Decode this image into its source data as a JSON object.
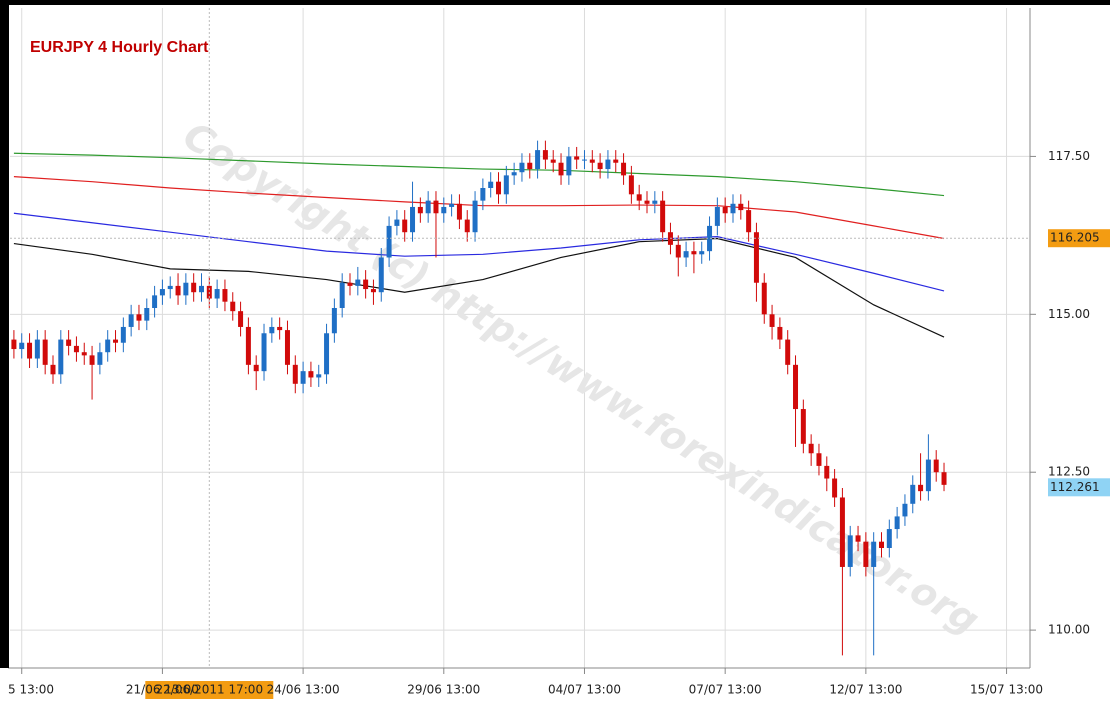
{
  "chart_data": {
    "type": "candlestick",
    "title": "EURJPY 4 Hourly Chart",
    "watermark": "Copyright (c) http://www.forexindicator.org",
    "up_color": "#1f6fc5",
    "down_color": "#d10a0a",
    "grid": true,
    "xlim": [
      -0.5,
      130
    ],
    "xticks": [
      {
        "value": 1,
        "label": "5 13:00"
      },
      {
        "value": 19,
        "label": "21/06 13:00"
      },
      {
        "value": 37,
        "label": "24/06 13:00"
      },
      {
        "value": 55,
        "label": "29/06 13:00"
      },
      {
        "value": 73,
        "label": "04/07 13:00"
      },
      {
        "value": 91,
        "label": "07/07 13:00"
      },
      {
        "value": 109,
        "label": "12/07 13:00"
      },
      {
        "value": 127,
        "label": "15/07 13:00"
      }
    ],
    "ylim": [
      109.4,
      119.85
    ],
    "yticks": [
      {
        "value": 110,
        "label": "110.00"
      },
      {
        "value": 112.5,
        "label": "112.50"
      },
      {
        "value": 115,
        "label": "115.00"
      },
      {
        "value": 117.5,
        "label": "117.50"
      }
    ],
    "crosshair": {
      "x": 25,
      "x_label": "22/06/2011 17:00",
      "y": 116.205
    },
    "last_price": 112.261,
    "open": [
      114.6,
      114.45,
      114.55,
      114.3,
      114.6,
      114.2,
      114.05,
      114.6,
      114.5,
      114.4,
      114.35,
      114.2,
      114.4,
      114.6,
      114.55,
      114.8,
      115.0,
      114.9,
      115.1,
      115.3,
      115.4,
      115.45,
      115.3,
      115.5,
      115.35,
      115.45,
      115.25,
      115.4,
      115.2,
      115.05,
      114.8,
      114.2,
      114.1,
      114.7,
      114.8,
      114.75,
      114.2,
      113.9,
      114.1,
      114.0,
      114.05,
      114.7,
      115.1,
      115.5,
      115.45,
      115.55,
      115.4,
      115.35,
      115.9,
      116.4,
      116.5,
      116.3,
      116.7,
      116.6,
      116.8,
      116.6,
      116.7,
      116.75,
      116.5,
      116.3,
      116.8,
      117.0,
      117.1,
      116.9,
      117.2,
      117.25,
      117.4,
      117.3,
      117.6,
      117.45,
      117.4,
      117.2,
      117.5,
      117.45,
      117.45,
      117.4,
      117.3,
      117.45,
      117.4,
      117.2,
      116.9,
      116.8,
      116.75,
      116.8,
      116.3,
      116.1,
      115.9,
      116.0,
      115.95,
      116.0,
      116.4,
      116.7,
      116.6,
      116.75,
      116.65,
      116.3,
      115.5,
      115.0,
      114.8,
      114.6,
      114.2,
      113.5,
      112.95,
      112.8,
      112.6,
      112.4,
      112.1,
      111.0,
      111.5,
      111.4,
      111.0,
      111.4,
      111.3,
      111.6,
      111.8,
      112.0,
      112.3,
      112.2,
      112.7,
      112.5
    ],
    "high": [
      114.75,
      114.7,
      114.7,
      114.75,
      114.75,
      114.35,
      114.75,
      114.75,
      114.65,
      114.55,
      114.5,
      114.55,
      114.75,
      114.75,
      114.95,
      115.15,
      115.15,
      115.25,
      115.45,
      115.55,
      115.6,
      115.65,
      115.65,
      115.65,
      115.65,
      115.6,
      115.55,
      115.55,
      115.35,
      115.2,
      114.95,
      114.35,
      114.85,
      114.95,
      114.95,
      114.9,
      114.35,
      114.25,
      114.25,
      114.2,
      114.85,
      115.25,
      115.65,
      115.65,
      115.75,
      115.7,
      115.55,
      116.05,
      116.55,
      116.65,
      116.65,
      117.1,
      116.85,
      116.95,
      116.95,
      116.85,
      116.9,
      116.9,
      116.65,
      116.95,
      117.15,
      117.25,
      117.25,
      117.35,
      117.4,
      117.55,
      117.55,
      117.75,
      117.75,
      117.6,
      117.55,
      117.65,
      117.65,
      117.6,
      117.6,
      117.55,
      117.6,
      117.6,
      117.55,
      117.35,
      117.05,
      116.95,
      116.95,
      116.95,
      116.45,
      116.25,
      116.15,
      116.15,
      116.15,
      116.55,
      116.85,
      116.85,
      116.9,
      116.9,
      116.8,
      116.45,
      115.65,
      115.15,
      114.95,
      114.75,
      114.35,
      113.65,
      113.1,
      112.95,
      112.75,
      112.55,
      112.25,
      111.65,
      111.65,
      111.55,
      111.55,
      111.55,
      111.75,
      111.95,
      112.15,
      112.45,
      112.8,
      113.1,
      112.85,
      112.65
    ],
    "low": [
      114.3,
      114.3,
      114.15,
      114.15,
      114.05,
      113.9,
      113.9,
      114.35,
      114.25,
      114.2,
      113.65,
      114.05,
      114.25,
      114.4,
      114.4,
      114.65,
      114.75,
      114.75,
      114.95,
      115.15,
      115.25,
      115.15,
      115.15,
      115.2,
      115.2,
      115.1,
      115.1,
      115.05,
      114.9,
      114.65,
      114.05,
      113.8,
      113.95,
      114.55,
      114.6,
      114.05,
      113.75,
      113.75,
      113.85,
      113.85,
      113.9,
      114.55,
      114.95,
      115.3,
      115.3,
      115.25,
      115.15,
      115.2,
      115.75,
      116.25,
      116.15,
      116.15,
      116.45,
      116.45,
      115.9,
      116.45,
      116.55,
      116.35,
      116.15,
      116.15,
      116.65,
      116.85,
      116.75,
      116.75,
      117.05,
      117.1,
      117.15,
      117.15,
      117.3,
      117.25,
      117.05,
      117.05,
      117.3,
      117.3,
      117.25,
      117.15,
      117.15,
      117.25,
      117.05,
      116.75,
      116.65,
      116.6,
      116.6,
      116.15,
      115.95,
      115.6,
      115.75,
      115.65,
      115.8,
      115.85,
      116.25,
      116.45,
      116.45,
      116.5,
      116.15,
      115.2,
      114.85,
      114.6,
      114.45,
      114.05,
      112.9,
      112.8,
      112.6,
      112.45,
      112.2,
      111.95,
      109.6,
      110.85,
      111.25,
      110.85,
      109.6,
      111.15,
      111.15,
      111.45,
      111.65,
      111.85,
      112.05,
      112.05,
      112.35,
      112.2
    ],
    "close": [
      114.45,
      114.55,
      114.3,
      114.6,
      114.2,
      114.05,
      114.6,
      114.5,
      114.4,
      114.35,
      114.2,
      114.4,
      114.6,
      114.55,
      114.8,
      115.0,
      114.9,
      115.1,
      115.3,
      115.4,
      115.45,
      115.3,
      115.5,
      115.35,
      115.45,
      115.25,
      115.4,
      115.2,
      115.05,
      114.8,
      114.2,
      114.1,
      114.7,
      114.8,
      114.75,
      114.2,
      113.9,
      114.1,
      114.0,
      114.05,
      114.7,
      115.1,
      115.5,
      115.45,
      115.55,
      115.4,
      115.35,
      115.9,
      116.4,
      116.5,
      116.3,
      116.7,
      116.6,
      116.8,
      116.6,
      116.7,
      116.75,
      116.5,
      116.3,
      116.8,
      117.0,
      117.1,
      116.9,
      117.2,
      117.25,
      117.4,
      117.3,
      117.6,
      117.45,
      117.4,
      117.2,
      117.5,
      117.45,
      117.45,
      117.4,
      117.3,
      117.45,
      117.4,
      117.2,
      116.9,
      116.8,
      116.75,
      116.8,
      116.3,
      116.1,
      115.9,
      116.0,
      115.95,
      116.0,
      116.4,
      116.7,
      116.6,
      116.75,
      116.65,
      116.3,
      115.5,
      115.0,
      114.8,
      114.6,
      114.2,
      113.5,
      112.95,
      112.8,
      112.6,
      112.4,
      112.1,
      111.0,
      111.5,
      111.4,
      111.0,
      111.4,
      111.3,
      111.6,
      111.8,
      112.0,
      112.3,
      112.2,
      112.7,
      112.5,
      112.3
    ],
    "series": [
      {
        "color": "#2e9a2e",
        "x": [
          0,
          10,
          20,
          30,
          40,
          50,
          60,
          70,
          80,
          90,
          100,
          110,
          119
        ],
        "values": [
          117.55,
          117.52,
          117.48,
          117.43,
          117.38,
          117.34,
          117.3,
          117.28,
          117.23,
          117.18,
          117.1,
          116.99,
          116.88
        ]
      },
      {
        "color": "#e02020",
        "x": [
          0,
          10,
          20,
          30,
          40,
          50,
          60,
          70,
          80,
          90,
          100,
          110,
          119
        ],
        "values": [
          117.18,
          117.1,
          117.0,
          116.92,
          116.85,
          116.78,
          116.72,
          116.72,
          116.73,
          116.72,
          116.62,
          116.4,
          116.2
        ]
      },
      {
        "color": "#2a2ae0",
        "x": [
          0,
          10,
          20,
          30,
          40,
          50,
          60,
          70,
          80,
          90,
          100,
          110,
          119
        ],
        "values": [
          116.6,
          116.45,
          116.3,
          116.15,
          116.0,
          115.92,
          115.95,
          116.05,
          116.18,
          116.23,
          115.95,
          115.65,
          115.37
        ]
      },
      {
        "color": "#111111",
        "x": [
          0,
          10,
          20,
          30,
          40,
          50,
          60,
          70,
          80,
          90,
          100,
          110,
          119
        ],
        "values": [
          116.12,
          115.95,
          115.72,
          115.68,
          115.55,
          115.35,
          115.55,
          115.9,
          116.15,
          116.2,
          115.9,
          115.15,
          114.64
        ]
      }
    ]
  }
}
